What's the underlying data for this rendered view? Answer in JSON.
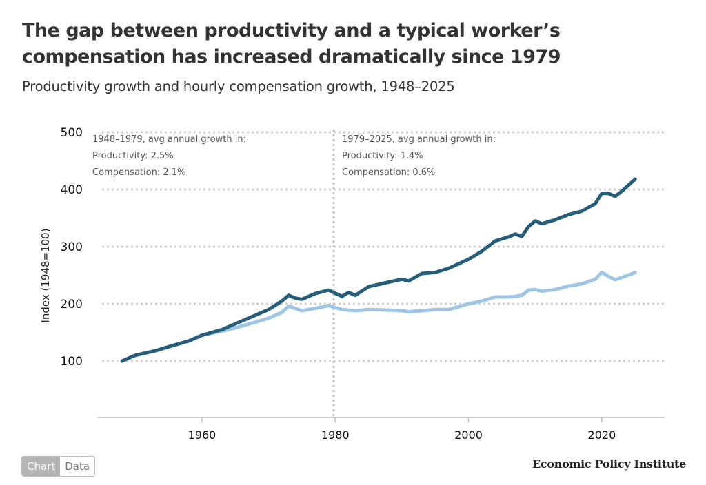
{
  "header": {
    "title": "The gap between productivity and a typical worker’s compensation has increased dramatically since 1979",
    "subtitle": "Productivity growth and hourly compensation growth, 1948–2025"
  },
  "toggle": {
    "chart_label": "Chart",
    "data_label": "Data",
    "active": "Chart"
  },
  "logo": "Economic Policy Institute",
  "colors": {
    "productivity": "#255d7a",
    "compensation": "#9fc5e6",
    "grid": "#d0d0d0",
    "axis": "#bdbdbd"
  },
  "chart_data": {
    "type": "line",
    "title": "Productivity growth and hourly compensation growth, 1948–2025",
    "xlabel": "",
    "ylabel": "Index (1948=100)",
    "xlim": [
      1944,
      2029.5
    ],
    "ylim": [
      0,
      500
    ],
    "xticks": [
      1960,
      1980,
      2000,
      2020
    ],
    "yticks": [
      100,
      200,
      300,
      400,
      500
    ],
    "grid": true,
    "divider_year": 1979.75,
    "annotations": [
      {
        "lines": [
          "1948–1979, avg annual growth in:",
          "Productivity: 2.5%",
          "Compensation: 2.1%"
        ],
        "position": "top-left"
      },
      {
        "lines": [
          "1979–2025, avg annual growth in:",
          "Productivity: 1.4%",
          "Compensation: 0.6%"
        ],
        "position": "top-center"
      }
    ],
    "x": [
      1948,
      1950,
      1953,
      1955,
      1958,
      1960,
      1963,
      1965,
      1968,
      1970,
      1972,
      1973,
      1974,
      1975,
      1977,
      1979,
      1981,
      1982,
      1983,
      1985,
      1988,
      1990,
      1991,
      1993,
      1995,
      1997,
      2000,
      2002,
      2004,
      2006,
      2007,
      2008,
      2009,
      2010,
      2011,
      2013,
      2015,
      2017,
      2019,
      2020,
      2021,
      2022,
      2023,
      2025
    ],
    "series": [
      {
        "name": "Productivity",
        "values": [
          100,
          110,
          118,
          125,
          135,
          145,
          155,
          165,
          180,
          190,
          205,
          215,
          210,
          208,
          218,
          224,
          213,
          220,
          215,
          230,
          238,
          243,
          240,
          253,
          255,
          262,
          278,
          292,
          310,
          317,
          322,
          318,
          335,
          345,
          340,
          347,
          356,
          362,
          375,
          393,
          393,
          388,
          397,
          418
        ]
      },
      {
        "name": "Compensation",
        "values": [
          100,
          110,
          118,
          125,
          135,
          145,
          152,
          158,
          168,
          175,
          185,
          196,
          192,
          188,
          192,
          197,
          190,
          189,
          188,
          190,
          189,
          188,
          186,
          188,
          190,
          190,
          200,
          205,
          212,
          212,
          213,
          215,
          224,
          225,
          222,
          225,
          231,
          235,
          243,
          255,
          248,
          242,
          246,
          255
        ]
      }
    ]
  }
}
